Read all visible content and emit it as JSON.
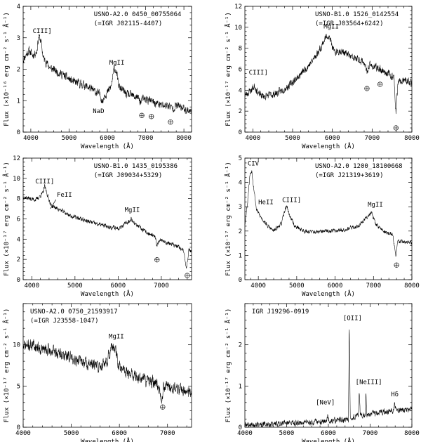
{
  "chart_data": [
    {
      "type": "line",
      "title": "USNO-A2.0 0450_00755064",
      "subtitle": "(=IGR J02115-4407)",
      "xlabel": "Wavelength (Å)",
      "ylabel": "Flux (×10⁻¹⁶ erg cm⁻² s⁻¹ Å⁻¹)",
      "xlim": [
        3800,
        8200
      ],
      "ylim": [
        0,
        4
      ],
      "xticks": [
        4000,
        5000,
        6000,
        7000,
        8000
      ],
      "yticks": [
        0,
        1,
        2,
        3,
        4
      ],
      "grid": false,
      "seed": 11,
      "noise": 0.11,
      "spectrum": [
        [
          3800,
          2.3
        ],
        [
          3950,
          2.6
        ],
        [
          4050,
          2.45
        ],
        [
          4150,
          2.55
        ],
        [
          4210,
          3.05
        ],
        [
          4260,
          2.9
        ],
        [
          4330,
          2.35
        ],
        [
          4500,
          2.05
        ],
        [
          4800,
          1.85
        ],
        [
          5100,
          1.6
        ],
        [
          5400,
          1.5
        ],
        [
          5600,
          1.35
        ],
        [
          5800,
          1.2
        ],
        [
          5850,
          1.05
        ],
        [
          5880,
          0.95
        ],
        [
          5920,
          1.2
        ],
        [
          6000,
          1.25
        ],
        [
          6100,
          1.45
        ],
        [
          6180,
          2.05
        ],
        [
          6230,
          1.95
        ],
        [
          6300,
          1.45
        ],
        [
          6500,
          1.2
        ],
        [
          6800,
          1.1
        ],
        [
          6870,
          0.95
        ],
        [
          6920,
          1.05
        ],
        [
          7000,
          1.05
        ],
        [
          7200,
          0.95
        ],
        [
          7400,
          0.85
        ],
        [
          7600,
          0.85
        ],
        [
          7700,
          0.75
        ],
        [
          7800,
          0.85
        ],
        [
          8000,
          0.75
        ],
        [
          8200,
          0.65
        ]
      ],
      "annotations": [
        {
          "text": "CIII]",
          "x": 4050,
          "y": 3.15
        },
        {
          "text": "MgII",
          "x": 6050,
          "y": 2.15
        },
        {
          "text": "NaD",
          "x": 5620,
          "y": 0.6
        }
      ],
      "telluric_x": [
        6900,
        7150,
        7650
      ]
    },
    {
      "type": "line",
      "title": "USNO-B1.0 1526_0142554",
      "subtitle": "(=IGR J03564+6242)",
      "xlabel": "Wavelength (Å)",
      "ylabel": "Flux (×10⁻¹⁷ erg cm⁻² s⁻¹ Å⁻¹)",
      "xlim": [
        3800,
        8000
      ],
      "ylim": [
        0,
        12
      ],
      "xticks": [
        4000,
        5000,
        6000,
        7000,
        8000
      ],
      "yticks": [
        0,
        2,
        4,
        6,
        8,
        10,
        12
      ],
      "grid": false,
      "seed": 23,
      "noise": 0.3,
      "spectrum": [
        [
          3800,
          3.5
        ],
        [
          3950,
          4.0
        ],
        [
          4050,
          4.4
        ],
        [
          4150,
          3.6
        ],
        [
          4300,
          3.4
        ],
        [
          4600,
          3.7
        ],
        [
          4900,
          4.4
        ],
        [
          5200,
          5.5
        ],
        [
          5500,
          6.8
        ],
        [
          5700,
          8.0
        ],
        [
          5800,
          8.8
        ],
        [
          5880,
          9.3
        ],
        [
          5950,
          8.8
        ],
        [
          6050,
          7.5
        ],
        [
          6150,
          7.8
        ],
        [
          6300,
          7.6
        ],
        [
          6500,
          7.1
        ],
        [
          6800,
          6.7
        ],
        [
          6870,
          5.6
        ],
        [
          6920,
          6.4
        ],
        [
          7000,
          6.3
        ],
        [
          7200,
          6.0
        ],
        [
          7400,
          5.6
        ],
        [
          7550,
          5.2
        ],
        [
          7600,
          1.8
        ],
        [
          7650,
          4.7
        ],
        [
          7800,
          4.9
        ],
        [
          8000,
          4.7
        ]
      ],
      "annotations": [
        {
          "text": "CIII]",
          "x": 3900,
          "y": 5.5
        },
        {
          "text": "MgII",
          "x": 5780,
          "y": 9.9
        }
      ],
      "telluric_x": [
        6870,
        7200,
        7600
      ]
    },
    {
      "type": "line",
      "title": "USNO-B1.0 1435_0195386",
      "subtitle": "(=IGR J09034+5329)",
      "xlabel": "Wavelength (Å)",
      "ylabel": "Flux (×10⁻¹⁷ erg cm⁻² s⁻¹ Å⁻¹)",
      "xlim": [
        3800,
        7700
      ],
      "ylim": [
        0,
        12
      ],
      "xticks": [
        4000,
        5000,
        6000,
        7000
      ],
      "yticks": [
        0,
        2,
        4,
        6,
        8,
        10,
        12
      ],
      "grid": false,
      "seed": 37,
      "noise": 0.18,
      "spectrum": [
        [
          3800,
          8.2
        ],
        [
          3950,
          8.0
        ],
        [
          4100,
          7.9
        ],
        [
          4250,
          8.5
        ],
        [
          4300,
          9.2
        ],
        [
          4360,
          8.4
        ],
        [
          4450,
          7.3
        ],
        [
          4650,
          6.9
        ],
        [
          4900,
          6.3
        ],
        [
          5200,
          5.9
        ],
        [
          5500,
          5.5
        ],
        [
          5800,
          5.2
        ],
        [
          6000,
          5.1
        ],
        [
          6200,
          5.6
        ],
        [
          6300,
          6.0
        ],
        [
          6420,
          5.4
        ],
        [
          6600,
          4.8
        ],
        [
          6850,
          4.2
        ],
        [
          6900,
          3.4
        ],
        [
          6960,
          4.0
        ],
        [
          7100,
          3.7
        ],
        [
          7300,
          3.4
        ],
        [
          7500,
          3.0
        ],
        [
          7580,
          1.2
        ],
        [
          7640,
          3.0
        ],
        [
          7700,
          2.8
        ]
      ],
      "annotations": [
        {
          "text": "CIII]",
          "x": 4080,
          "y": 9.5
        },
        {
          "text": "FeII",
          "x": 4580,
          "y": 8.2
        },
        {
          "text": "MgII",
          "x": 6150,
          "y": 6.7
        }
      ],
      "telluric_x": [
        6900,
        7600
      ]
    },
    {
      "type": "line",
      "title": "USNO-A2.0 1200_18100668",
      "subtitle": "(=IGR J21319+3619)",
      "xlabel": "Wavelength (Å)",
      "ylabel": "Flux (×10⁻¹⁷ erg cm⁻² s⁻¹ Å⁻¹)",
      "xlim": [
        3650,
        8000
      ],
      "ylim": [
        0,
        5
      ],
      "xticks": [
        4000,
        5000,
        6000,
        7000,
        8000
      ],
      "yticks": [
        0,
        1,
        2,
        3,
        4,
        5
      ],
      "grid": false,
      "seed": 53,
      "noise": 0.07,
      "spectrum": [
        [
          3650,
          2.3
        ],
        [
          3720,
          3.2
        ],
        [
          3780,
          4.3
        ],
        [
          3830,
          4.5
        ],
        [
          3880,
          3.8
        ],
        [
          3950,
          2.9
        ],
        [
          4050,
          2.6
        ],
        [
          4150,
          2.4
        ],
        [
          4250,
          2.2
        ],
        [
          4400,
          2.0
        ],
        [
          4600,
          2.3
        ],
        [
          4700,
          2.9
        ],
        [
          4740,
          3.05
        ],
        [
          4800,
          2.7
        ],
        [
          4950,
          2.2
        ],
        [
          5200,
          2.0
        ],
        [
          5500,
          1.95
        ],
        [
          5800,
          2.0
        ],
        [
          6200,
          2.05
        ],
        [
          6600,
          2.2
        ],
        [
          6850,
          2.6
        ],
        [
          6950,
          2.8
        ],
        [
          7050,
          2.3
        ],
        [
          7300,
          1.95
        ],
        [
          7500,
          1.85
        ],
        [
          7580,
          1.0
        ],
        [
          7640,
          1.6
        ],
        [
          7800,
          1.55
        ],
        [
          8000,
          1.5
        ]
      ],
      "annotations": [
        {
          "text": "CIV",
          "x": 3720,
          "y": 4.7
        },
        {
          "text": "HeII",
          "x": 4000,
          "y": 3.1
        },
        {
          "text": "CIII]",
          "x": 4620,
          "y": 3.2
        },
        {
          "text": "MgII",
          "x": 6850,
          "y": 3.0
        }
      ],
      "telluric_x": [
        7600
      ]
    },
    {
      "type": "line",
      "title": "USNO-A2.0 0750_21593917",
      "subtitle": "(=IGR J23558-1047)",
      "xlabel": "Wavelength (Å)",
      "ylabel": "Flux (×10⁻¹⁷ erg cm⁻² s⁻¹ Å⁻¹)",
      "xlim": [
        4000,
        7500
      ],
      "ylim": [
        0,
        15
      ],
      "xticks": [
        4000,
        5000,
        6000,
        7000
      ],
      "yticks": [
        0,
        5,
        10
      ],
      "grid": false,
      "seed": 71,
      "noise": 0.6,
      "spectrum": [
        [
          4000,
          9.8
        ],
        [
          4200,
          10.0
        ],
        [
          4400,
          9.5
        ],
        [
          4600,
          9.2
        ],
        [
          4800,
          8.8
        ],
        [
          5000,
          8.5
        ],
        [
          5200,
          8.0
        ],
        [
          5400,
          7.6
        ],
        [
          5600,
          7.3
        ],
        [
          5750,
          8.2
        ],
        [
          5850,
          9.7
        ],
        [
          5920,
          9.2
        ],
        [
          6000,
          7.2
        ],
        [
          6200,
          6.6
        ],
        [
          6400,
          6.0
        ],
        [
          6600,
          5.6
        ],
        [
          6800,
          5.2
        ],
        [
          6880,
          3.5
        ],
        [
          6920,
          5.0
        ],
        [
          7100,
          4.8
        ],
        [
          7300,
          4.5
        ],
        [
          7500,
          4.2
        ]
      ],
      "annotations": [
        {
          "text": "MgII",
          "x": 5780,
          "y": 10.8
        }
      ],
      "telluric_x": [
        6900
      ]
    },
    {
      "type": "line",
      "title": "IGR J19296-0919",
      "subtitle": "",
      "xlabel": "Wavelength (Å)",
      "ylabel": "Flux (×10⁻¹⁷ erg cm⁻² s⁻¹ Å⁻¹)",
      "xlim": [
        4000,
        8000
      ],
      "ylim": [
        0,
        3
      ],
      "xticks": [
        4000,
        5000,
        6000,
        7000,
        8000
      ],
      "yticks": [
        0,
        1,
        2
      ],
      "grid": false,
      "seed": 89,
      "noise": 0.06,
      "spectrum": [
        [
          4000,
          0.05
        ],
        [
          4500,
          0.07
        ],
        [
          5000,
          0.1
        ],
        [
          5500,
          0.12
        ],
        [
          5950,
          0.14
        ],
        [
          5985,
          0.3
        ],
        [
          6020,
          0.15
        ],
        [
          6400,
          0.18
        ],
        [
          6480,
          0.2
        ],
        [
          6500,
          2.55
        ],
        [
          6525,
          0.25
        ],
        [
          6600,
          0.25
        ],
        [
          6720,
          0.3
        ],
        [
          6740,
          0.85
        ],
        [
          6760,
          0.3
        ],
        [
          6880,
          0.3
        ],
        [
          6900,
          0.8
        ],
        [
          6920,
          0.3
        ],
        [
          7200,
          0.35
        ],
        [
          7550,
          0.4
        ],
        [
          7580,
          0.55
        ],
        [
          7620,
          0.4
        ],
        [
          8000,
          0.45
        ]
      ],
      "annotations": [
        {
          "text": "[NeV]",
          "x": 5700,
          "y": 0.55
        },
        {
          "text": "[OII]",
          "x": 6350,
          "y": 2.6
        },
        {
          "text": "[NeIII]",
          "x": 6650,
          "y": 1.05
        },
        {
          "text": "Hδ",
          "x": 7500,
          "y": 0.75
        }
      ],
      "telluric_x": []
    }
  ]
}
